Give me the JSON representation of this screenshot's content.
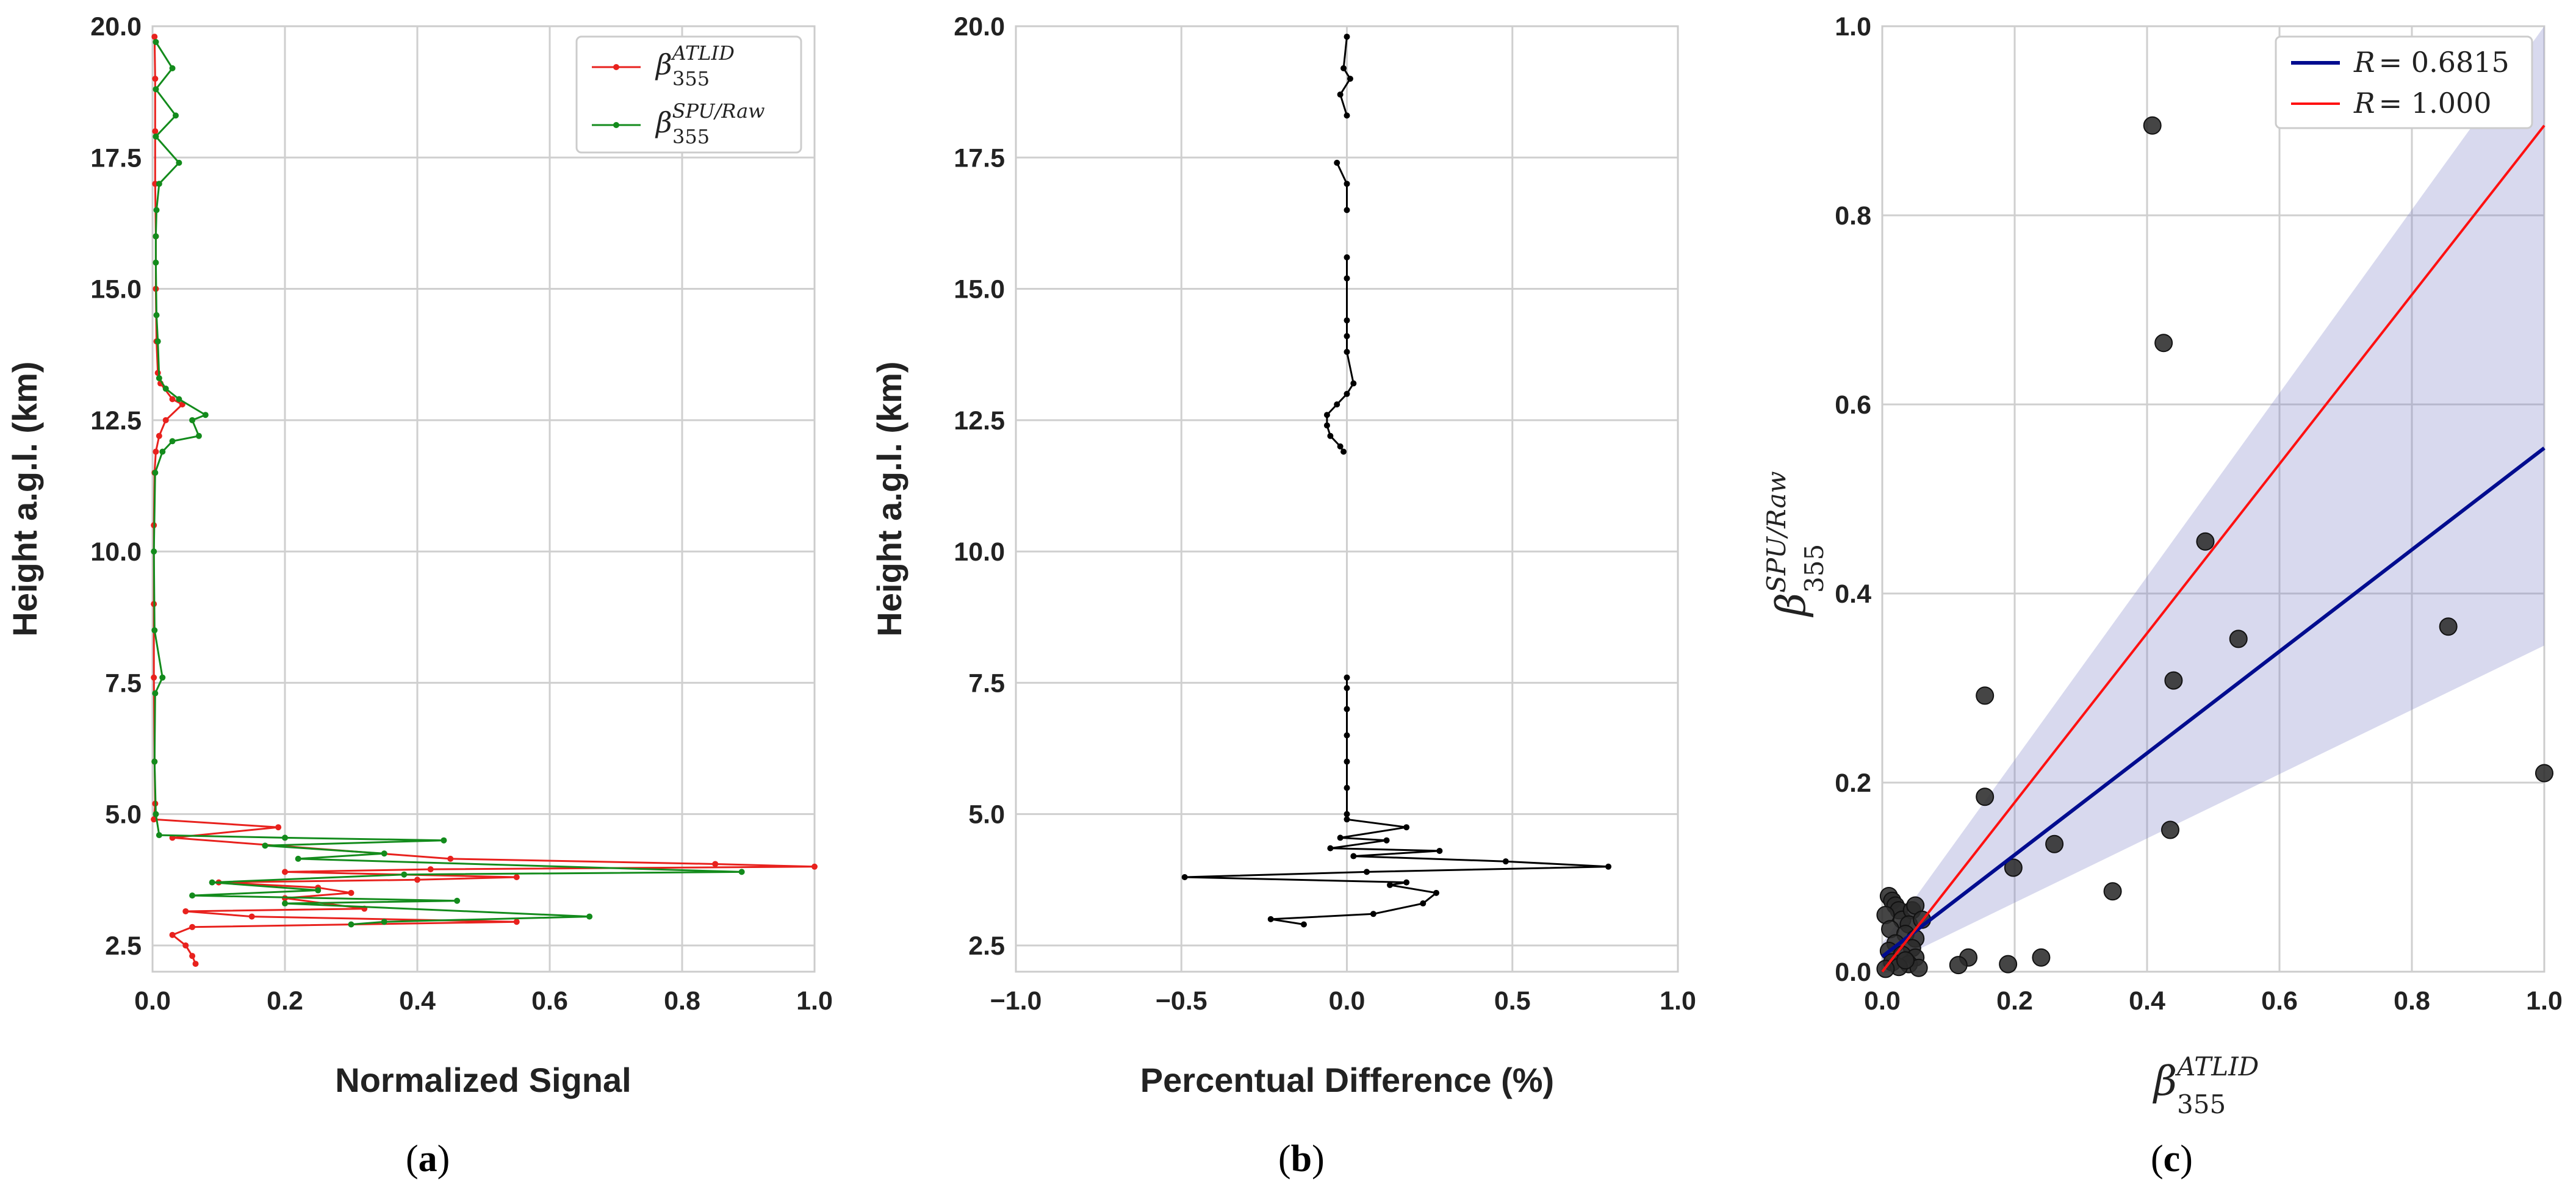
{
  "chart_data": [
    {
      "id": "a",
      "type": "line",
      "panel_label": "a",
      "xlabel": "Normalized Signal",
      "ylabel": "Height a.g.l. (km)",
      "xlim": [
        0,
        1
      ],
      "ylim": [
        2,
        20
      ],
      "xticks": [
        "0.0",
        "0.2",
        "0.4",
        "0.6",
        "0.8",
        "1.0"
      ],
      "xtick_values": [
        0,
        0.2,
        0.4,
        0.6,
        0.8,
        1.0
      ],
      "yticks": [
        "2.5",
        "5.0",
        "7.5",
        "10.0",
        "12.5",
        "15.0",
        "17.5",
        "20.0"
      ],
      "ytick_values": [
        2.5,
        5,
        7.5,
        10,
        12.5,
        15,
        17.5,
        20
      ],
      "grid": true,
      "legend_position": "top-right",
      "series": [
        {
          "name": "beta_355_ATLID",
          "legend_base": "β",
          "legend_sub": "355",
          "legend_sup": "ATLID",
          "color": "#e8211d",
          "points": [
            [
              0.003,
              19.8
            ],
            [
              0.004,
              19.0
            ],
            [
              0.004,
              18.0
            ],
            [
              0.004,
              17.0
            ],
            [
              0.005,
              16.0
            ],
            [
              0.005,
              15.0
            ],
            [
              0.006,
              14.0
            ],
            [
              0.008,
              13.4
            ],
            [
              0.012,
              13.2
            ],
            [
              0.03,
              12.9
            ],
            [
              0.045,
              12.8
            ],
            [
              0.02,
              12.5
            ],
            [
              0.01,
              12.2
            ],
            [
              0.005,
              11.9
            ],
            [
              0.003,
              11.5
            ],
            [
              0.002,
              10.5
            ],
            [
              0.002,
              9.0
            ],
            [
              0.002,
              7.6
            ],
            [
              0.003,
              6.0
            ],
            [
              0.004,
              5.2
            ],
            [
              0.002,
              4.9
            ],
            [
              0.19,
              4.75
            ],
            [
              0.03,
              4.55
            ],
            [
              0.45,
              4.15
            ],
            [
              0.85,
              4.05
            ],
            [
              1.0,
              4.0
            ],
            [
              0.42,
              3.95
            ],
            [
              0.2,
              3.9
            ],
            [
              0.55,
              3.8
            ],
            [
              0.4,
              3.75
            ],
            [
              0.1,
              3.7
            ],
            [
              0.25,
              3.6
            ],
            [
              0.3,
              3.5
            ],
            [
              0.2,
              3.4
            ],
            [
              0.32,
              3.2
            ],
            [
              0.05,
              3.15
            ],
            [
              0.15,
              3.05
            ],
            [
              0.55,
              2.95
            ],
            [
              0.06,
              2.85
            ],
            [
              0.03,
              2.7
            ],
            [
              0.05,
              2.5
            ],
            [
              0.06,
              2.3
            ],
            [
              0.065,
              2.15
            ]
          ]
        },
        {
          "name": "beta_355_SPU_Raw",
          "legend_base": "β",
          "legend_sub": "355",
          "legend_sup": "SPU/Raw",
          "color": "#138b1c",
          "points": [
            [
              0.005,
              19.7
            ],
            [
              0.03,
              19.2
            ],
            [
              0.005,
              18.8
            ],
            [
              0.035,
              18.3
            ],
            [
              0.005,
              17.9
            ],
            [
              0.04,
              17.4
            ],
            [
              0.01,
              17.0
            ],
            [
              0.006,
              16.5
            ],
            [
              0.005,
              16.0
            ],
            [
              0.005,
              15.5
            ],
            [
              0.006,
              14.5
            ],
            [
              0.008,
              14.0
            ],
            [
              0.01,
              13.3
            ],
            [
              0.02,
              13.1
            ],
            [
              0.04,
              12.9
            ],
            [
              0.08,
              12.6
            ],
            [
              0.06,
              12.5
            ],
            [
              0.07,
              12.2
            ],
            [
              0.03,
              12.1
            ],
            [
              0.015,
              11.9
            ],
            [
              0.004,
              11.5
            ],
            [
              0.002,
              10.0
            ],
            [
              0.003,
              8.5
            ],
            [
              0.015,
              7.6
            ],
            [
              0.004,
              7.3
            ],
            [
              0.003,
              6.0
            ],
            [
              0.005,
              5.0
            ],
            [
              0.01,
              4.6
            ],
            [
              0.2,
              4.55
            ],
            [
              0.44,
              4.5
            ],
            [
              0.17,
              4.4
            ],
            [
              0.35,
              4.25
            ],
            [
              0.22,
              4.15
            ],
            [
              0.89,
              3.9
            ],
            [
              0.38,
              3.85
            ],
            [
              0.09,
              3.7
            ],
            [
              0.25,
              3.55
            ],
            [
              0.06,
              3.45
            ],
            [
              0.46,
              3.35
            ],
            [
              0.2,
              3.3
            ],
            [
              0.66,
              3.05
            ],
            [
              0.35,
              2.95
            ],
            [
              0.3,
              2.9
            ]
          ]
        }
      ]
    },
    {
      "id": "b",
      "type": "line",
      "panel_label": "b",
      "xlabel": "Percentual Difference (%)",
      "ylabel": "Height a.g.l. (km)",
      "xlim": [
        -1,
        1
      ],
      "ylim": [
        2,
        20
      ],
      "xticks": [
        "−1.0",
        "−0.5",
        "0.0",
        "0.5",
        "1.0"
      ],
      "xtick_values": [
        -1,
        -0.5,
        0,
        0.5,
        1
      ],
      "yticks": [
        "2.5",
        "5.0",
        "7.5",
        "10.0",
        "12.5",
        "15.0",
        "17.5",
        "20.0"
      ],
      "ytick_values": [
        2.5,
        5,
        7.5,
        10,
        12.5,
        15,
        17.5,
        20
      ],
      "grid": true,
      "series": [
        {
          "name": "percent_difference",
          "color": "#000000",
          "points": [
            [
              0.0,
              19.8
            ],
            [
              -0.01,
              19.2
            ],
            [
              0.01,
              19.0
            ],
            [
              -0.02,
              18.7
            ],
            [
              0.0,
              18.3
            ],
            [
              -0.03,
              17.4
            ],
            [
              0.0,
              17.0
            ],
            [
              0.0,
              16.5
            ],
            [
              0.0,
              15.6
            ],
            [
              0.0,
              15.2
            ],
            [
              0.0,
              14.4
            ],
            [
              0.0,
              14.1
            ],
            [
              0.0,
              13.8
            ],
            [
              0.02,
              13.2
            ],
            [
              0.0,
              13.0
            ],
            [
              -0.03,
              12.8
            ],
            [
              -0.06,
              12.6
            ],
            [
              -0.06,
              12.4
            ],
            [
              -0.05,
              12.2
            ],
            [
              -0.02,
              12.0
            ],
            [
              -0.01,
              11.9
            ],
            [
              0.0,
              7.6
            ],
            [
              0.0,
              7.4
            ],
            [
              0.0,
              7.0
            ],
            [
              0.0,
              6.5
            ],
            [
              0.0,
              6.0
            ],
            [
              0.0,
              5.5
            ],
            [
              0.0,
              5.0
            ],
            [
              0.0,
              4.9
            ],
            [
              0.18,
              4.75
            ],
            [
              -0.02,
              4.55
            ],
            [
              0.12,
              4.5
            ],
            [
              -0.05,
              4.35
            ],
            [
              0.28,
              4.3
            ],
            [
              0.02,
              4.2
            ],
            [
              0.48,
              4.1
            ],
            [
              0.79,
              4.0
            ],
            [
              0.06,
              3.9
            ],
            [
              -0.49,
              3.8
            ],
            [
              0.18,
              3.7
            ],
            [
              0.13,
              3.65
            ],
            [
              0.27,
              3.5
            ],
            [
              0.23,
              3.3
            ],
            [
              0.08,
              3.1
            ],
            [
              -0.23,
              3.0
            ],
            [
              -0.13,
              2.9
            ]
          ]
        }
      ]
    },
    {
      "id": "c",
      "type": "scatter",
      "panel_label": "c",
      "xlabel_base": "β",
      "xlabel_sub": "355",
      "xlabel_sup": "ATLID",
      "ylabel_base": "β",
      "ylabel_sub": "355",
      "ylabel_sup": "SPU/Raw",
      "xlim": [
        0,
        1
      ],
      "ylim": [
        0,
        1
      ],
      "xticks": [
        "0.0",
        "0.2",
        "0.4",
        "0.6",
        "0.8",
        "1.0"
      ],
      "xtick_values": [
        0,
        0.2,
        0.4,
        0.6,
        0.8,
        1.0
      ],
      "yticks": [
        "0.0",
        "0.2",
        "0.4",
        "0.6",
        "0.8",
        "1.0"
      ],
      "ytick_values": [
        0,
        0.2,
        0.4,
        0.6,
        0.8,
        1.0
      ],
      "grid": true,
      "legend_position": "top-right",
      "lines": [
        {
          "name": "fit",
          "label": "R = 0.6815",
          "label_var": "R",
          "label_val": "= 0.6815",
          "color": "#000c8f",
          "slope": 0.5379,
          "intercept": 0.016
        },
        {
          "name": "one_to_one",
          "label": "R = 1.000",
          "label_var": "R",
          "label_val": "= 1.000",
          "color": "#ff1111",
          "slope": 0.895,
          "intercept": 0.0
        }
      ],
      "confidence_band": {
        "color": "#7d80c8",
        "opacity": 0.3,
        "lower_at_x1": 0.345,
        "upper_at_x1": 1.0,
        "lower_at_x0": 0.005,
        "upper_at_x0": 0.03
      },
      "points": [
        [
          0.408,
          0.895
        ],
        [
          0.425,
          0.665
        ],
        [
          0.488,
          0.455
        ],
        [
          0.538,
          0.352
        ],
        [
          0.855,
          0.365
        ],
        [
          0.44,
          0.308
        ],
        [
          0.155,
          0.292
        ],
        [
          0.155,
          0.185
        ],
        [
          1.0,
          0.21
        ],
        [
          0.26,
          0.135
        ],
        [
          0.198,
          0.11
        ],
        [
          0.348,
          0.085
        ],
        [
          0.435,
          0.15
        ],
        [
          0.13,
          0.015
        ],
        [
          0.115,
          0.007
        ],
        [
          0.19,
          0.008
        ],
        [
          0.24,
          0.015
        ],
        [
          0.01,
          0.08
        ],
        [
          0.015,
          0.075
        ],
        [
          0.02,
          0.07
        ],
        [
          0.025,
          0.065
        ],
        [
          0.005,
          0.06
        ],
        [
          0.03,
          0.055
        ],
        [
          0.045,
          0.065
        ],
        [
          0.05,
          0.07
        ],
        [
          0.04,
          0.05
        ],
        [
          0.012,
          0.045
        ],
        [
          0.035,
          0.04
        ],
        [
          0.05,
          0.035
        ],
        [
          0.02,
          0.03
        ],
        [
          0.045,
          0.025
        ],
        [
          0.01,
          0.022
        ],
        [
          0.03,
          0.018
        ],
        [
          0.05,
          0.015
        ],
        [
          0.015,
          0.01
        ],
        [
          0.04,
          0.008
        ],
        [
          0.025,
          0.005
        ],
        [
          0.055,
          0.004
        ],
        [
          0.005,
          0.003
        ],
        [
          0.035,
          0.012
        ],
        [
          0.06,
          0.055
        ]
      ]
    }
  ]
}
